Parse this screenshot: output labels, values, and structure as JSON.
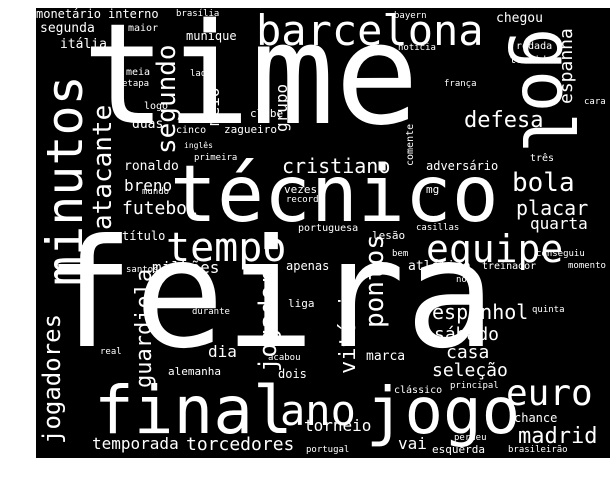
{
  "background": "#000000",
  "text_color": "#ffffff",
  "words": {
    "feira": "feira",
    "time": "time",
    "tecnico": "técnico",
    "jogo": "jogo",
    "final": "final",
    "minutos": "minutos",
    "barcelona": "barcelona",
    "equipe": "equipe",
    "tempo": "tempo",
    "gol": "gol",
    "ano": "ano",
    "euro": "euro",
    "jogadores": "jogadores",
    "atacante": "atacante",
    "segundo": "segundo",
    "bola": "bola",
    "pontos": "pontos",
    "madrid": "madrid",
    "vitoria": "vitória",
    "jogador": "jogador",
    "guardiola": "guardiola",
    "cristiano": "cristiano",
    "placar": "placar",
    "defesa": "defesa",
    "espanhol": "espanhol",
    "torcedores": "torcedores",
    "temporada": "temporada",
    "sabado": "sábado",
    "casa": "casa",
    "selecao": "seleção",
    "quarta": "quarta",
    "futebol": "futebol",
    "breno": "breno",
    "milhoes": "milhões",
    "dia": "dia",
    "torneio": "torneio",
    "espanha": "espanha",
    "grupo": "grupo",
    "meio": "meio",
    "vai": "vai",
    "ronaldo": "ronaldo",
    "duas": "duas",
    "chegou": "chegou",
    "segunda": "segunda",
    "italia": "itália",
    "monetario": "monetário",
    "interno": "interno",
    "brasilia": "brasília",
    "maior": "maior",
    "munique": "munique",
    "bayern": "bayern",
    "noticia": "notícia",
    "rodada": "rodada",
    "torcida": "torcida",
    "meia": "meia",
    "etapa": "etapa",
    "lado": "lado",
    "franca": "frança",
    "logo": "logo",
    "clube": "clube",
    "zagueiro": "zagueiro",
    "cinco": "cinco",
    "ingles": "inglês",
    "primeira": "primeira",
    "comente": "comente",
    "cara": "cara",
    "adversario": "adversário",
    "tres": "três",
    "mundo": "mundo",
    "vezes": "vezes",
    "recorde": "recorde",
    "mg": "mg",
    "casillas": "casillas",
    "conseguiu": "conseguiu",
    "titulo": "título",
    "portuguesa": "portuguesa",
    "lesao": "lesão",
    "santos": "santos",
    "apenas": "apenas",
    "bem": "bem",
    "atletico": "atlético",
    "treinador": "treinador",
    "momento": "momento",
    "novo": "novo",
    "quinta": "quinta",
    "durante": "durante",
    "liga": "liga",
    "real": "real",
    "acabou": "acabou",
    "marca": "marca",
    "dois": "dois",
    "alemanha": "alemanha",
    "classico": "clássico",
    "principal": "principal",
    "chance": "chance",
    "perdeu": "perdeu",
    "portugal": "portugal",
    "esquerda": "esquerda",
    "brasileirao": "brasileirão"
  }
}
